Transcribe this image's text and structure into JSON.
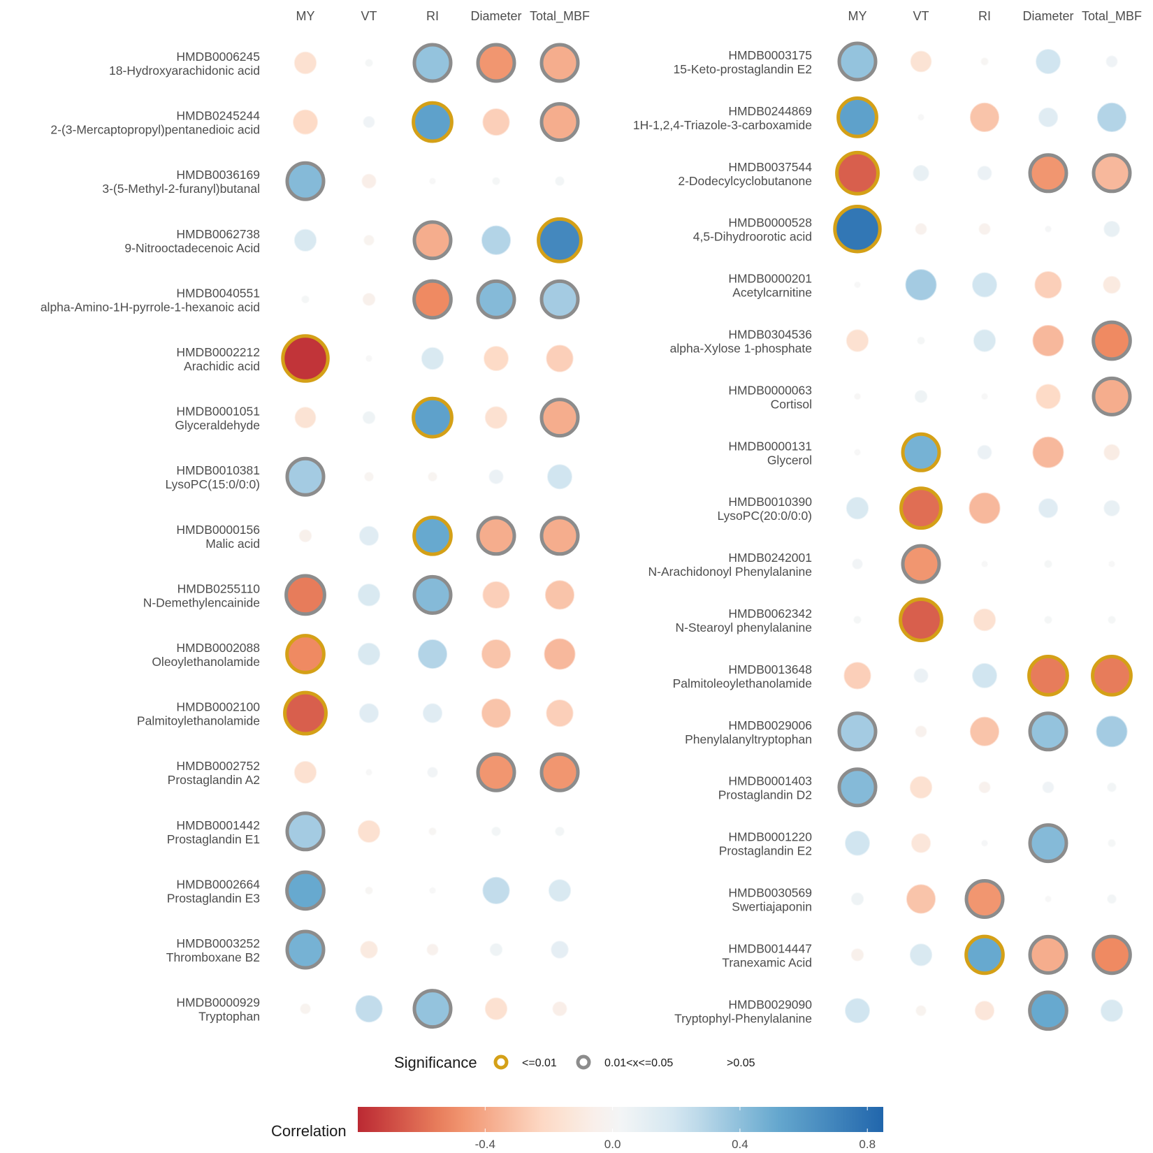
{
  "chart_data": [
    {
      "type": "bubble-correlation-matrix",
      "columns": [
        "MY",
        "VT",
        "RI",
        "Diameter",
        "Total_MBF"
      ],
      "rows": [
        {
          "id": "HMDB0006245",
          "name": "18-Hydroxyarachidonic acid",
          "r": [
            -0.2,
            0.02,
            0.45,
            -0.55,
            -0.45
          ],
          "sig": [
            "ns",
            "ns",
            "p05",
            "p05",
            "p05"
          ]
        },
        {
          "id": "HMDB0245244",
          "name": "2-(3-Mercaptopropyl)pentanedioic acid",
          "r": [
            -0.25,
            0.05,
            0.65,
            -0.3,
            -0.45
          ],
          "sig": [
            "ns",
            "ns",
            "p01",
            "ns",
            "p05"
          ]
        },
        {
          "id": "HMDB0036169",
          "name": "3-(5-Methyl-2-furanyl)butanal",
          "r": [
            0.5,
            -0.08,
            0.0,
            0.02,
            0.03
          ],
          "sig": [
            "p05",
            "ns",
            "ns",
            "ns",
            "ns"
          ]
        },
        {
          "id": "HMDB0062738",
          "name": "9-Nitrooctadecenoic Acid",
          "r": [
            0.2,
            -0.04,
            -0.45,
            0.35,
            0.8
          ],
          "sig": [
            "ns",
            "ns",
            "p05",
            "ns",
            "p01"
          ]
        },
        {
          "id": "HMDB0040551",
          "name": "alpha-Amino-1H-pyrrole-1-hexanoic acid",
          "r": [
            0.02,
            -0.06,
            -0.6,
            0.5,
            0.4
          ],
          "sig": [
            "ns",
            "ns",
            "p05",
            "p05",
            "p05"
          ]
        },
        {
          "id": "HMDB0002212",
          "name": "Arachidic acid",
          "r": [
            -0.9,
            0.0,
            0.2,
            -0.25,
            -0.3
          ],
          "sig": [
            "p01",
            "ns",
            "ns",
            "ns",
            "ns"
          ]
        },
        {
          "id": "HMDB0001051",
          "name": "Glyceraldehyde",
          "r": [
            -0.18,
            0.06,
            0.65,
            -0.2,
            -0.45
          ],
          "sig": [
            "ns",
            "ns",
            "p01",
            "ns",
            "p05"
          ]
        },
        {
          "id": "HMDB0010381",
          "name": "LysoPC(15:0/0:0)",
          "r": [
            0.4,
            -0.03,
            -0.03,
            0.08,
            0.25
          ],
          "sig": [
            "p05",
            "ns",
            "ns",
            "ns",
            "ns"
          ]
        },
        {
          "id": "HMDB0000156",
          "name": "Malic acid",
          "r": [
            -0.06,
            0.15,
            0.6,
            -0.45,
            -0.45
          ],
          "sig": [
            "ns",
            "ns",
            "p01",
            "p05",
            "p05"
          ]
        },
        {
          "id": "HMDB0255110",
          "name": "N-Demethylencainide",
          "r": [
            -0.65,
            0.2,
            0.5,
            -0.3,
            -0.35
          ],
          "sig": [
            "p05",
            "ns",
            "p05",
            "ns",
            "ns"
          ]
        },
        {
          "id": "HMDB0002088",
          "name": "Oleoylethanolamide",
          "r": [
            -0.6,
            0.2,
            0.35,
            -0.35,
            -0.4
          ],
          "sig": [
            "p01",
            "ns",
            "ns",
            "ns",
            "ns"
          ]
        },
        {
          "id": "HMDB0002100",
          "name": "Palmitoylethanolamide",
          "r": [
            -0.75,
            0.15,
            0.15,
            -0.35,
            -0.3
          ],
          "sig": [
            "p01",
            "ns",
            "ns",
            "ns",
            "ns"
          ]
        },
        {
          "id": "HMDB0002752",
          "name": "Prostaglandin A2",
          "r": [
            -0.2,
            0.0,
            0.04,
            -0.55,
            -0.55
          ],
          "sig": [
            "ns",
            "ns",
            "ns",
            "p05",
            "p05"
          ]
        },
        {
          "id": "HMDB0001442",
          "name": "Prostaglandin E1",
          "r": [
            0.4,
            -0.2,
            -0.02,
            0.03,
            0.03
          ],
          "sig": [
            "p05",
            "ns",
            "ns",
            "ns",
            "ns"
          ]
        },
        {
          "id": "HMDB0002664",
          "name": "Prostaglandin E3",
          "r": [
            0.6,
            -0.02,
            0.0,
            0.3,
            0.2
          ],
          "sig": [
            "p05",
            "ns",
            "ns",
            "ns",
            "ns"
          ]
        },
        {
          "id": "HMDB0003252",
          "name": "Thromboxane B2",
          "r": [
            0.55,
            -0.12,
            -0.05,
            0.06,
            0.12
          ],
          "sig": [
            "p05",
            "ns",
            "ns",
            "ns",
            "ns"
          ]
        },
        {
          "id": "HMDB0000929",
          "name": "Tryptophan",
          "r": [
            -0.04,
            0.3,
            0.45,
            -0.2,
            -0.08
          ],
          "sig": [
            "ns",
            "ns",
            "p05",
            "ns",
            "ns"
          ]
        }
      ]
    },
    {
      "type": "bubble-correlation-matrix",
      "columns": [
        "MY",
        "VT",
        "RI",
        "Diameter",
        "Total_MBF"
      ],
      "rows": [
        {
          "id": "HMDB0003175",
          "name": "15-Keto-prostaglandin E2",
          "r": [
            0.45,
            -0.18,
            -0.02,
            0.25,
            0.05
          ],
          "sig": [
            "p05",
            "ns",
            "ns",
            "ns",
            "ns"
          ]
        },
        {
          "id": "HMDB0244869",
          "name": "1H-1,2,4-Triazole-3-carboxamide",
          "r": [
            0.65,
            0.0,
            -0.35,
            0.15,
            0.35
          ],
          "sig": [
            "p01",
            "ns",
            "ns",
            "ns",
            "ns"
          ]
        },
        {
          "id": "HMDB0037544",
          "name": "2-Dodecylcyclobutanone",
          "r": [
            -0.75,
            0.1,
            0.08,
            -0.55,
            -0.4
          ],
          "sig": [
            "p01",
            "ns",
            "ns",
            "p05",
            "p05"
          ]
        },
        {
          "id": "HMDB0000528",
          "name": "4,5-Dihydroorotic acid",
          "r": [
            0.9,
            -0.05,
            -0.05,
            0.01,
            0.1
          ],
          "sig": [
            "p01",
            "ns",
            "ns",
            "ns",
            "ns"
          ]
        },
        {
          "id": "HMDB0000201",
          "name": "Acetylcarnitine",
          "r": [
            0.0,
            0.4,
            0.25,
            -0.3,
            -0.12
          ],
          "sig": [
            "ns",
            "ns",
            "ns",
            "ns",
            "ns"
          ]
        },
        {
          "id": "HMDB0304536",
          "name": "alpha-Xylose 1-phosphate",
          "r": [
            -0.2,
            0.02,
            0.2,
            -0.4,
            -0.6
          ],
          "sig": [
            "ns",
            "ns",
            "ns",
            "ns",
            "p05"
          ]
        },
        {
          "id": "HMDB0000063",
          "name": "Cortisol",
          "r": [
            -0.01,
            0.06,
            0.0,
            -0.25,
            -0.45
          ],
          "sig": [
            "ns",
            "ns",
            "ns",
            "ns",
            "p05"
          ]
        },
        {
          "id": "HMDB0000131",
          "name": "Glycerol",
          "r": [
            0.0,
            0.55,
            0.08,
            -0.4,
            -0.1
          ],
          "sig": [
            "ns",
            "p01",
            "ns",
            "ns",
            "ns"
          ]
        },
        {
          "id": "HMDB0010390",
          "name": "LysoPC(20:0/0:0)",
          "r": [
            0.2,
            -0.7,
            -0.4,
            0.15,
            0.1
          ],
          "sig": [
            "ns",
            "p01",
            "ns",
            "ns",
            "ns"
          ]
        },
        {
          "id": "HMDB0242001",
          "name": "N-Arachidonoyl Phenylalanine",
          "r": [
            0.04,
            -0.55,
            0.0,
            0.02,
            0.0
          ],
          "sig": [
            "ns",
            "p05",
            "ns",
            "ns",
            "ns"
          ]
        },
        {
          "id": "HMDB0062342",
          "name": "N-Stearoyl phenylalanine",
          "r": [
            0.02,
            -0.75,
            -0.2,
            0.02,
            0.02
          ],
          "sig": [
            "ns",
            "p01",
            "ns",
            "ns",
            "ns"
          ]
        },
        {
          "id": "HMDB0013648",
          "name": "Palmitoleoylethanolamide",
          "r": [
            -0.3,
            0.08,
            0.25,
            -0.65,
            -0.65
          ],
          "sig": [
            "ns",
            "ns",
            "ns",
            "p01",
            "p01"
          ]
        },
        {
          "id": "HMDB0029006",
          "name": "Phenylalanyltryptophan",
          "r": [
            0.4,
            -0.05,
            -0.35,
            0.45,
            0.4
          ],
          "sig": [
            "p05",
            "ns",
            "ns",
            "p05",
            "ns"
          ]
        },
        {
          "id": "HMDB0001403",
          "name": "Prostaglandin D2",
          "r": [
            0.5,
            -0.2,
            -0.05,
            0.05,
            0.03
          ],
          "sig": [
            "p05",
            "ns",
            "ns",
            "ns",
            "ns"
          ]
        },
        {
          "id": "HMDB0001220",
          "name": "Prostaglandin E2",
          "r": [
            0.25,
            -0.15,
            0.01,
            0.5,
            0.02
          ],
          "sig": [
            "ns",
            "ns",
            "ns",
            "p05",
            "ns"
          ]
        },
        {
          "id": "HMDB0030569",
          "name": "Swertiajaponin",
          "r": [
            0.06,
            -0.35,
            -0.55,
            0.0,
            0.03
          ],
          "sig": [
            "ns",
            "ns",
            "p05",
            "ns",
            "ns"
          ]
        },
        {
          "id": "HMDB0014447",
          "name": "Tranexamic Acid",
          "r": [
            -0.06,
            0.2,
            0.6,
            -0.45,
            -0.6
          ],
          "sig": [
            "ns",
            "ns",
            "p01",
            "p05",
            "p05"
          ]
        },
        {
          "id": "HMDB0029090",
          "name": "Tryptophyl-Phenylalanine",
          "r": [
            0.25,
            -0.04,
            -0.15,
            0.6,
            0.2
          ],
          "sig": [
            "ns",
            "ns",
            "ns",
            "p05",
            "ns"
          ]
        }
      ]
    }
  ],
  "legend": {
    "significance_title": "Significance",
    "levels": [
      {
        "key": "p01",
        "label": "<=0.01",
        "color": "#d4a017"
      },
      {
        "key": "p05",
        "label": "0.01<x<=0.05",
        "color": "#8c8c8c"
      },
      {
        "key": "ns",
        "label": ">0.05",
        "color": "none"
      }
    ],
    "correlation_title": "Correlation",
    "colorbar_range": [
      -0.8,
      0.85
    ],
    "colorbar_ticks": [
      "-0.4",
      "0.0",
      "0.4",
      "0.8"
    ],
    "colorbar_tick_values": [
      -0.4,
      0.0,
      0.4,
      0.8
    ]
  },
  "colors": {
    "negative_strong": "#b2182b",
    "negative_mid": "#ef8a62",
    "negative_light": "#fddbc7",
    "neutral": "#f7f7f7",
    "positive_light": "#d1e5f0",
    "positive_mid": "#67a9cf",
    "positive_strong": "#2166ac"
  }
}
